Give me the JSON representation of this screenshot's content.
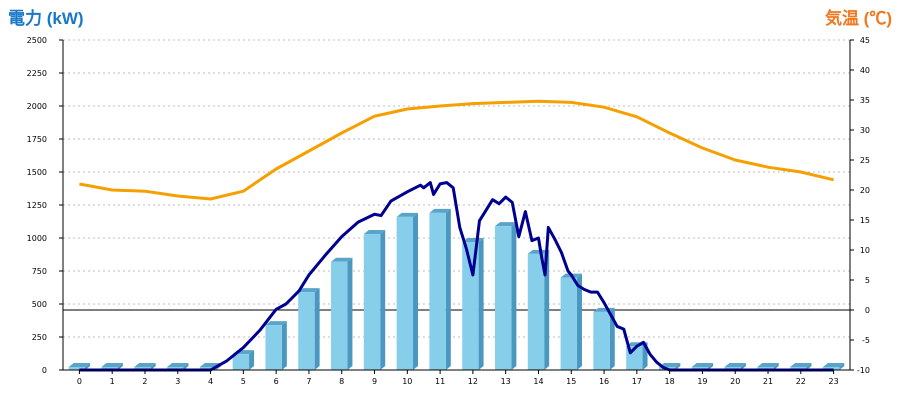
{
  "chart_data": {
    "type": "bar+line",
    "left_axis_title": "電力 (kW)",
    "right_axis_title": "気温 (℃)",
    "left_axis_color": "#1a78c8",
    "right_axis_color": "#f07820",
    "categories": [
      "0",
      "1",
      "2",
      "3",
      "4",
      "5",
      "6",
      "7",
      "8",
      "9",
      "10",
      "11",
      "12",
      "13",
      "14",
      "15",
      "16",
      "17",
      "18",
      "19",
      "20",
      "21",
      "22",
      "23"
    ],
    "ylim_left": [
      0,
      2500
    ],
    "ylim_right": [
      -10,
      45
    ],
    "left_ticks": [
      "0",
      "250",
      "500",
      "750",
      "1000",
      "1250",
      "1500",
      "1750",
      "2000",
      "2250",
      "2500"
    ],
    "right_ticks": [
      "-10",
      "-5",
      "0",
      "5",
      "10",
      "15",
      "20",
      "25",
      "30",
      "35",
      "40",
      "45"
    ],
    "grid": true,
    "bars": {
      "color": "#87ceeb",
      "values": [
        0,
        0,
        0,
        0,
        0,
        120,
        340,
        590,
        820,
        1030,
        1160,
        1190,
        970,
        1090,
        880,
        700,
        440,
        180,
        0,
        0,
        0,
        0,
        0,
        0
      ]
    },
    "power_line": {
      "color": "#000090",
      "x": [
        0,
        1,
        2,
        3,
        4,
        4.5,
        5,
        5.5,
        6,
        6.3,
        6.5,
        6.7,
        7,
        7.5,
        8,
        8.5,
        9,
        9.2,
        9.5,
        10,
        10.4,
        10.5,
        10.7,
        10.8,
        11,
        11.2,
        11.4,
        11.6,
        11.8,
        12,
        12.2,
        12.4,
        12.6,
        12.8,
        13,
        13.2,
        13.4,
        13.6,
        13.8,
        14,
        14.1,
        14.2,
        14.3,
        14.5,
        14.7,
        14.9,
        15,
        15.2,
        15.4,
        15.6,
        15.8,
        16,
        16.2,
        16.4,
        16.6,
        16.8,
        17,
        17.2,
        17.4,
        17.6,
        17.8,
        18,
        19,
        20,
        21,
        22,
        23
      ],
      "y": [
        0,
        0,
        0,
        0,
        0,
        70,
        170,
        300,
        460,
        500,
        550,
        600,
        720,
        870,
        1010,
        1120,
        1180,
        1170,
        1280,
        1350,
        1400,
        1380,
        1420,
        1330,
        1410,
        1420,
        1380,
        1080,
        920,
        720,
        1130,
        1210,
        1290,
        1260,
        1310,
        1270,
        1010,
        1200,
        980,
        1000,
        850,
        720,
        1080,
        990,
        890,
        750,
        720,
        640,
        610,
        590,
        590,
        510,
        420,
        330,
        310,
        130,
        180,
        210,
        120,
        60,
        20,
        0,
        0,
        0,
        0,
        0,
        0
      ]
    },
    "temperature_line": {
      "color": "#f5a000",
      "x": [
        0,
        1,
        2,
        3,
        4,
        5,
        6,
        7,
        8,
        9,
        10,
        11,
        12,
        13,
        14,
        15,
        16,
        17,
        18,
        19,
        20,
        21,
        22,
        23
      ],
      "y": [
        21,
        20,
        19.8,
        19,
        18.5,
        19.8,
        23.5,
        26.5,
        29.5,
        32.3,
        33.5,
        34,
        34.4,
        34.6,
        34.8,
        34.6,
        33.8,
        32.2,
        29.5,
        27,
        25,
        23.8,
        23,
        21.7
      ]
    }
  }
}
